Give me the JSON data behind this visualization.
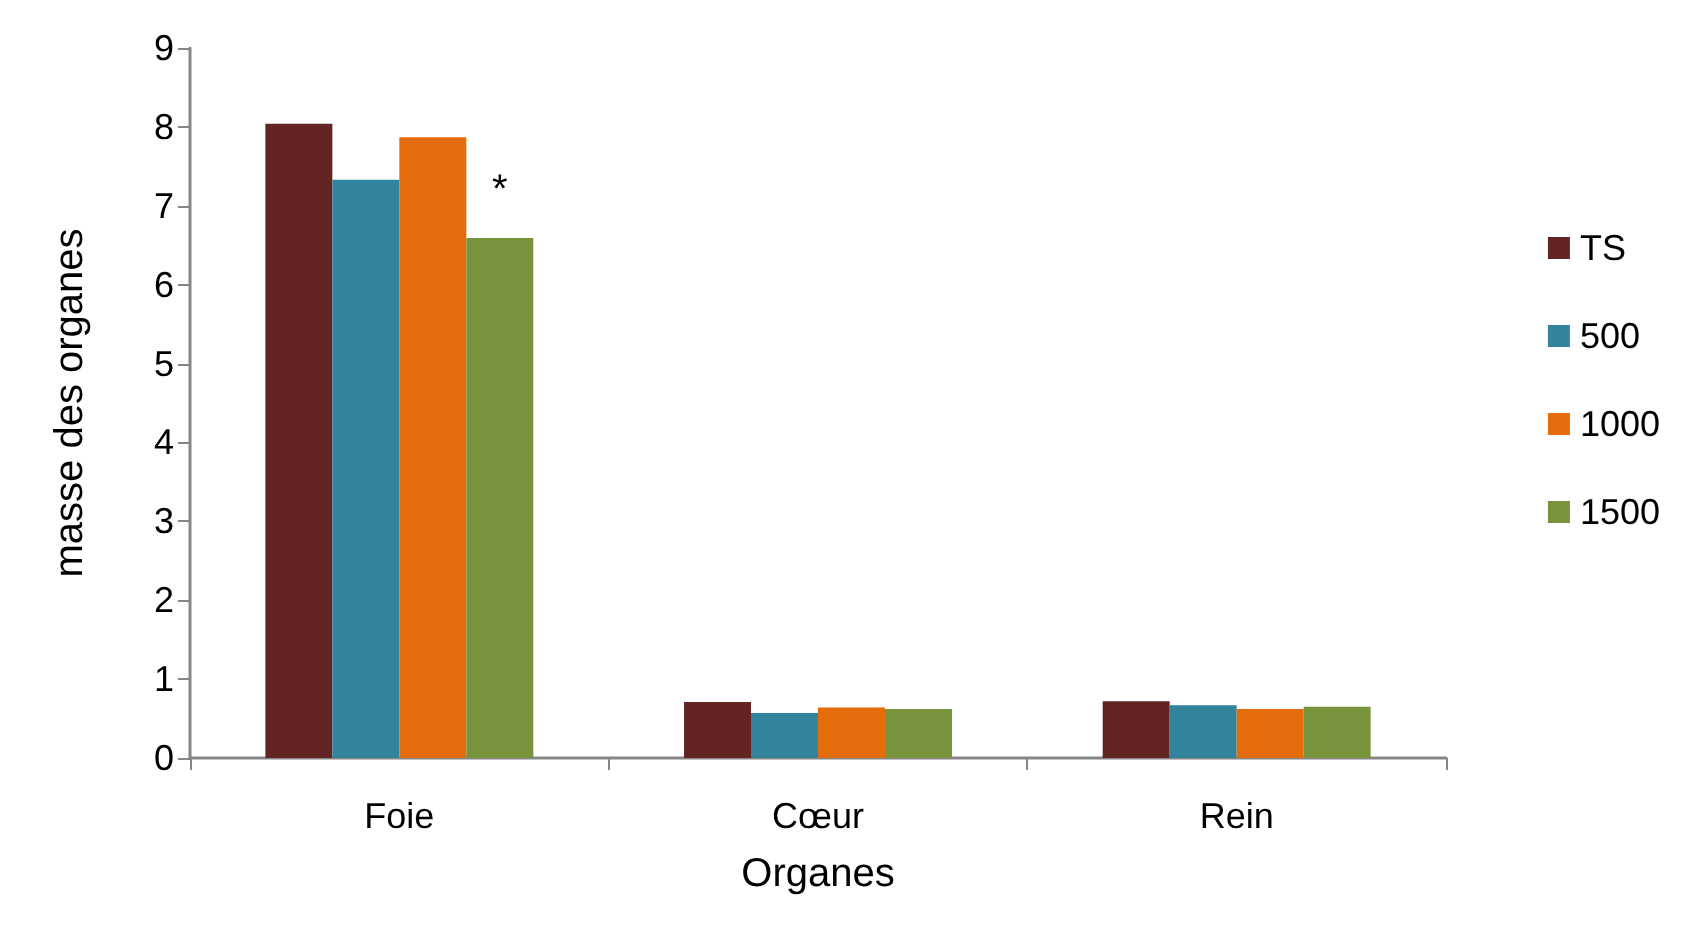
{
  "chart_data": {
    "type": "bar",
    "xlabel": "Organes",
    "ylabel": "masse des organes",
    "categories": [
      "Foie",
      "Cœur",
      "Rein"
    ],
    "series": [
      {
        "name": "TS",
        "color": "#632523",
        "values": [
          8.04,
          0.71,
          0.72
        ]
      },
      {
        "name": "500",
        "color": "#31849b",
        "values": [
          7.33,
          0.57,
          0.67
        ]
      },
      {
        "name": "1000",
        "color": "#e46c0a",
        "values": [
          7.87,
          0.64,
          0.62
        ]
      },
      {
        "name": "1500",
        "color": "#77933c",
        "values": [
          6.59,
          0.62,
          0.65
        ]
      }
    ],
    "ylim": [
      0,
      9
    ],
    "yticks": [
      0,
      1,
      2,
      3,
      4,
      5,
      6,
      7,
      8,
      9
    ],
    "grid": false,
    "legend": "right",
    "annotations": [
      {
        "text": "*",
        "x": "Foie",
        "y": 7.2
      }
    ]
  }
}
